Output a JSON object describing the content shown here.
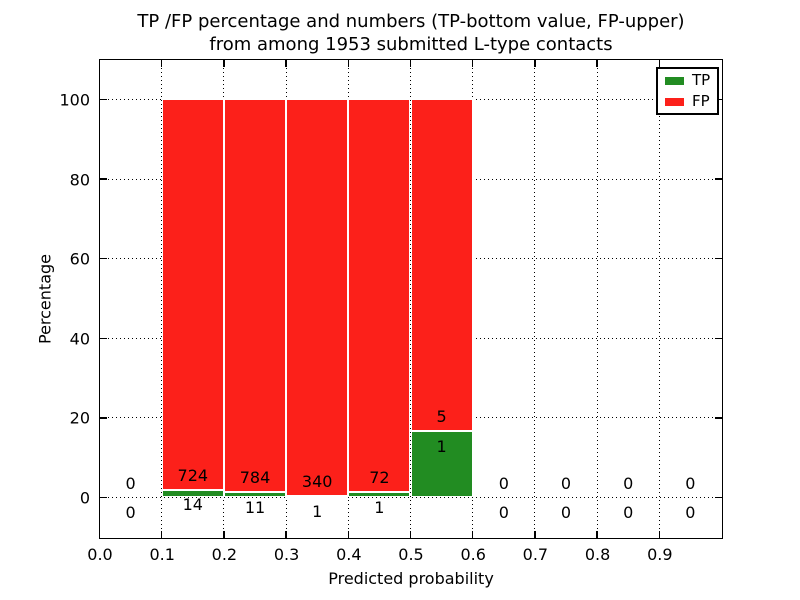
{
  "figure": {
    "title_line1": "TP /FP percentage and numbers (TP-bottom value, FP-upper)",
    "title_line2": "from among 1953 submitted L-type contacts",
    "xlabel": "Predicted probability",
    "ylabel": "Percentage"
  },
  "chart_data": {
    "type": "bar",
    "stacked": true,
    "title": "TP /FP percentage and numbers (TP-bottom value, FP-upper) from among 1953 submitted L-type contacts",
    "xlabel": "Predicted probability",
    "ylabel": "Percentage",
    "xlim": [
      0.0,
      1.0
    ],
    "ylim": [
      -10,
      110
    ],
    "x_ticks": [
      "0.0",
      "0.1",
      "0.2",
      "0.3",
      "0.4",
      "0.5",
      "0.6",
      "0.7",
      "0.8",
      "0.9"
    ],
    "y_ticks": [
      0,
      20,
      40,
      60,
      80,
      100
    ],
    "grid": "dotted",
    "legend_position": "upper right",
    "series": [
      {
        "name": "TP",
        "color": "#228c22"
      },
      {
        "name": "FP",
        "color": "#fc201a"
      }
    ],
    "bar_total_pct": 100,
    "bins": [
      {
        "x_start": 0.0,
        "x_end": 0.1,
        "tp": 0,
        "fp": 0,
        "tp_pct": 0,
        "bar": false
      },
      {
        "x_start": 0.1,
        "x_end": 0.2,
        "tp": 14,
        "fp": 724,
        "tp_pct": 1.9,
        "bar": true
      },
      {
        "x_start": 0.2,
        "x_end": 0.3,
        "tp": 11,
        "fp": 784,
        "tp_pct": 1.38,
        "bar": true
      },
      {
        "x_start": 0.3,
        "x_end": 0.4,
        "tp": 1,
        "fp": 340,
        "tp_pct": 0.29,
        "bar": true
      },
      {
        "x_start": 0.4,
        "x_end": 0.5,
        "tp": 1,
        "fp": 72,
        "tp_pct": 1.37,
        "bar": true
      },
      {
        "x_start": 0.5,
        "x_end": 0.6,
        "tp": 1,
        "fp": 5,
        "tp_pct": 16.67,
        "bar": true
      },
      {
        "x_start": 0.6,
        "x_end": 0.7,
        "tp": 0,
        "fp": 0,
        "tp_pct": 0,
        "bar": false
      },
      {
        "x_start": 0.7,
        "x_end": 0.8,
        "tp": 0,
        "fp": 0,
        "tp_pct": 0,
        "bar": false
      },
      {
        "x_start": 0.8,
        "x_end": 0.9,
        "tp": 0,
        "fp": 0,
        "tp_pct": 0,
        "bar": false
      },
      {
        "x_start": 0.9,
        "x_end": 1.0,
        "tp": 0,
        "fp": 0,
        "tp_pct": 0,
        "bar": false
      }
    ]
  }
}
